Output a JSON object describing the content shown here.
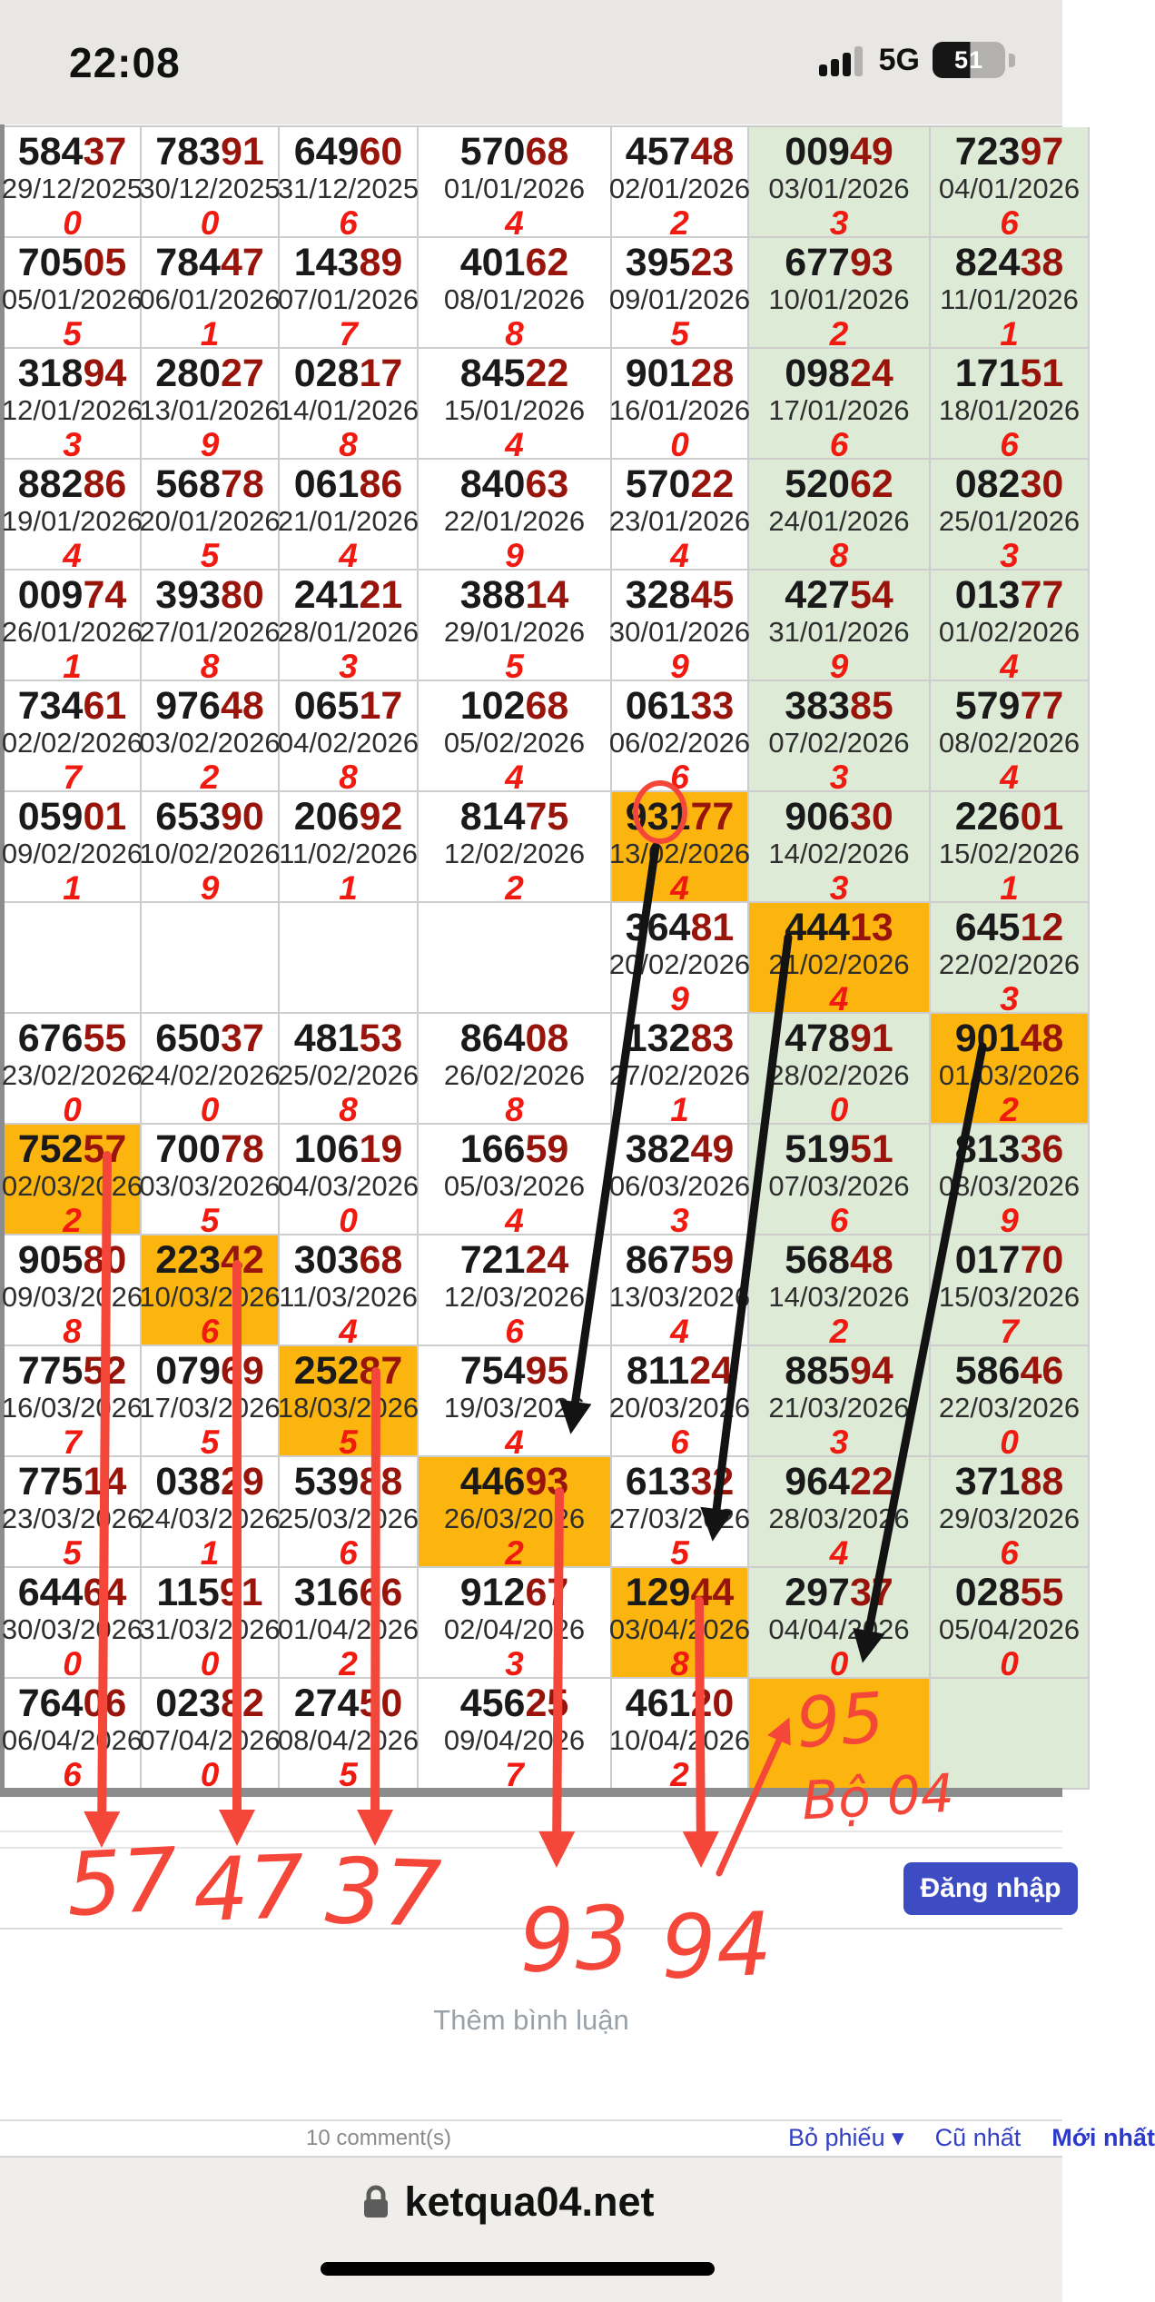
{
  "status_bar": {
    "time": "22:08",
    "network": "5G",
    "battery_percent": "51"
  },
  "lottery_table": {
    "highlight_color": "#fcb50f",
    "green_column_color": "#dcead6",
    "rows": [
      [
        {
          "n": "58437",
          "d": "29/12/2025",
          "g": "0"
        },
        {
          "n": "78391",
          "d": "30/12/2025",
          "g": "0"
        },
        {
          "n": "64960",
          "d": "31/12/2025",
          "g": "6"
        },
        {
          "n": "57068",
          "d": "01/01/2026",
          "g": "4"
        },
        {
          "n": "45748",
          "d": "02/01/2026",
          "g": "2"
        },
        {
          "n": "00949",
          "d": "03/01/2026",
          "g": "3"
        },
        {
          "n": "72397",
          "d": "04/01/2026",
          "g": "6"
        }
      ],
      [
        {
          "n": "70505",
          "d": "05/01/2026",
          "g": "5"
        },
        {
          "n": "78447",
          "d": "06/01/2026",
          "g": "1"
        },
        {
          "n": "14389",
          "d": "07/01/2026",
          "g": "7"
        },
        {
          "n": "40162",
          "d": "08/01/2026",
          "g": "8"
        },
        {
          "n": "39523",
          "d": "09/01/2026",
          "g": "5"
        },
        {
          "n": "67793",
          "d": "10/01/2026",
          "g": "2"
        },
        {
          "n": "82438",
          "d": "11/01/2026",
          "g": "1"
        }
      ],
      [
        {
          "n": "31894",
          "d": "12/01/2026",
          "g": "3"
        },
        {
          "n": "28027",
          "d": "13/01/2026",
          "g": "9"
        },
        {
          "n": "02817",
          "d": "14/01/2026",
          "g": "8"
        },
        {
          "n": "84522",
          "d": "15/01/2026",
          "g": "4"
        },
        {
          "n": "90128",
          "d": "16/01/2026",
          "g": "0"
        },
        {
          "n": "09824",
          "d": "17/01/2026",
          "g": "6"
        },
        {
          "n": "17151",
          "d": "18/01/2026",
          "g": "6"
        }
      ],
      [
        {
          "n": "88286",
          "d": "19/01/2026",
          "g": "4"
        },
        {
          "n": "56878",
          "d": "20/01/2026",
          "g": "5"
        },
        {
          "n": "06186",
          "d": "21/01/2026",
          "g": "4"
        },
        {
          "n": "84063",
          "d": "22/01/2026",
          "g": "9"
        },
        {
          "n": "57022",
          "d": "23/01/2026",
          "g": "4"
        },
        {
          "n": "52062",
          "d": "24/01/2026",
          "g": "8"
        },
        {
          "n": "08230",
          "d": "25/01/2026",
          "g": "3"
        }
      ],
      [
        {
          "n": "00974",
          "d": "26/01/2026",
          "g": "1"
        },
        {
          "n": "39380",
          "d": "27/01/2026",
          "g": "8"
        },
        {
          "n": "24121",
          "d": "28/01/2026",
          "g": "3"
        },
        {
          "n": "38814",
          "d": "29/01/2026",
          "g": "5"
        },
        {
          "n": "32845",
          "d": "30/01/2026",
          "g": "9"
        },
        {
          "n": "42754",
          "d": "31/01/2026",
          "g": "9"
        },
        {
          "n": "01377",
          "d": "01/02/2026",
          "g": "4"
        }
      ],
      [
        {
          "n": "73461",
          "d": "02/02/2026",
          "g": "7"
        },
        {
          "n": "97648",
          "d": "03/02/2026",
          "g": "2"
        },
        {
          "n": "06517",
          "d": "04/02/2026",
          "g": "8"
        },
        {
          "n": "10268",
          "d": "05/02/2026",
          "g": "4"
        },
        {
          "n": "06133",
          "d": "06/02/2026",
          "g": "6"
        },
        {
          "n": "38385",
          "d": "07/02/2026",
          "g": "3"
        },
        {
          "n": "57977",
          "d": "08/02/2026",
          "g": "4"
        }
      ],
      [
        {
          "n": "05901",
          "d": "09/02/2026",
          "g": "1"
        },
        {
          "n": "65390",
          "d": "10/02/2026",
          "g": "9"
        },
        {
          "n": "20692",
          "d": "11/02/2026",
          "g": "1"
        },
        {
          "n": "81475",
          "d": "12/02/2026",
          "g": "2"
        },
        {
          "n": "93177",
          "d": "13/02/2026",
          "g": "4",
          "hl": true
        },
        {
          "n": "90630",
          "d": "14/02/2026",
          "g": "3"
        },
        {
          "n": "22601",
          "d": "15/02/2026",
          "g": "1"
        }
      ],
      [
        null,
        null,
        null,
        null,
        {
          "n": "36481",
          "d": "20/02/2026",
          "g": "9"
        },
        {
          "n": "44413",
          "d": "21/02/2026",
          "g": "4",
          "hl": true
        },
        {
          "n": "64512",
          "d": "22/02/2026",
          "g": "3"
        }
      ],
      [
        {
          "n": "67655",
          "d": "23/02/2026",
          "g": "0"
        },
        {
          "n": "65037",
          "d": "24/02/2026",
          "g": "0"
        },
        {
          "n": "48153",
          "d": "25/02/2026",
          "g": "8"
        },
        {
          "n": "86408",
          "d": "26/02/2026",
          "g": "8"
        },
        {
          "n": "13283",
          "d": "27/02/2026",
          "g": "1"
        },
        {
          "n": "47891",
          "d": "28/02/2026",
          "g": "0"
        },
        {
          "n": "90148",
          "d": "01/03/2026",
          "g": "2",
          "hl": true
        }
      ],
      [
        {
          "n": "75257",
          "d": "02/03/2026",
          "g": "2",
          "hl": true
        },
        {
          "n": "70078",
          "d": "03/03/2026",
          "g": "5"
        },
        {
          "n": "10619",
          "d": "04/03/2026",
          "g": "0"
        },
        {
          "n": "16659",
          "d": "05/03/2026",
          "g": "4"
        },
        {
          "n": "38249",
          "d": "06/03/2026",
          "g": "3"
        },
        {
          "n": "51951",
          "d": "07/03/2026",
          "g": "6"
        },
        {
          "n": "81336",
          "d": "08/03/2026",
          "g": "9"
        }
      ],
      [
        {
          "n": "90580",
          "d": "09/03/2026",
          "g": "8"
        },
        {
          "n": "22342",
          "d": "10/03/2026",
          "g": "6",
          "hl": true
        },
        {
          "n": "30368",
          "d": "11/03/2026",
          "g": "4"
        },
        {
          "n": "72124",
          "d": "12/03/2026",
          "g": "6"
        },
        {
          "n": "86759",
          "d": "13/03/2026",
          "g": "4"
        },
        {
          "n": "56848",
          "d": "14/03/2026",
          "g": "2"
        },
        {
          "n": "01770",
          "d": "15/03/2026",
          "g": "7"
        }
      ],
      [
        {
          "n": "77552",
          "d": "16/03/2026",
          "g": "7"
        },
        {
          "n": "07969",
          "d": "17/03/2026",
          "g": "5"
        },
        {
          "n": "25287",
          "d": "18/03/2026",
          "g": "5",
          "hl": true
        },
        {
          "n": "75495",
          "d": "19/03/2026",
          "g": "4"
        },
        {
          "n": "81124",
          "d": "20/03/2026",
          "g": "6"
        },
        {
          "n": "88594",
          "d": "21/03/2026",
          "g": "3"
        },
        {
          "n": "58646",
          "d": "22/03/2026",
          "g": "0"
        }
      ],
      [
        {
          "n": "77514",
          "d": "23/03/2026",
          "g": "5"
        },
        {
          "n": "03829",
          "d": "24/03/2026",
          "g": "1"
        },
        {
          "n": "53988",
          "d": "25/03/2026",
          "g": "6"
        },
        {
          "n": "44693",
          "d": "26/03/2026",
          "g": "2",
          "hl": true
        },
        {
          "n": "61332",
          "d": "27/03/2026",
          "g": "5"
        },
        {
          "n": "96422",
          "d": "28/03/2026",
          "g": "4"
        },
        {
          "n": "37188",
          "d": "29/03/2026",
          "g": "6"
        }
      ],
      [
        {
          "n": "64464",
          "d": "30/03/2026",
          "g": "0"
        },
        {
          "n": "11591",
          "d": "31/03/2026",
          "g": "0"
        },
        {
          "n": "31666",
          "d": "01/04/2026",
          "g": "2"
        },
        {
          "n": "91267",
          "d": "02/04/2026",
          "g": "3"
        },
        {
          "n": "12944",
          "d": "03/04/2026",
          "g": "8",
          "hl": true
        },
        {
          "n": "29737",
          "d": "04/04/2026",
          "g": "0"
        },
        {
          "n": "02855",
          "d": "05/04/2026",
          "g": "0"
        }
      ],
      [
        {
          "n": "76406",
          "d": "06/04/2026",
          "g": "6"
        },
        {
          "n": "02382",
          "d": "07/04/2026",
          "g": "0"
        },
        {
          "n": "27450",
          "d": "08/04/2026",
          "g": "5"
        },
        {
          "n": "45625",
          "d": "09/04/2026",
          "g": "7"
        },
        {
          "n": "46120",
          "d": "10/04/2026",
          "g": "2"
        },
        {
          "hl": true
        },
        {}
      ]
    ]
  },
  "annotations": {
    "pen_color": "#f4473a",
    "handwritten": [
      "57",
      "47",
      "37",
      "93",
      "94",
      "95",
      "Bộ 04"
    ]
  },
  "comments": {
    "placeholder": "Thêm bình luận",
    "count_label": "10 comment(s)",
    "sort_vote": "Bỏ phiếu",
    "dropdown_glyph": "▾",
    "sort_oldest": "Cũ nhất",
    "sort_newest": "Mới nhất",
    "login_button": "Đăng nhập"
  },
  "browser": {
    "url": "ketqua04.net"
  }
}
